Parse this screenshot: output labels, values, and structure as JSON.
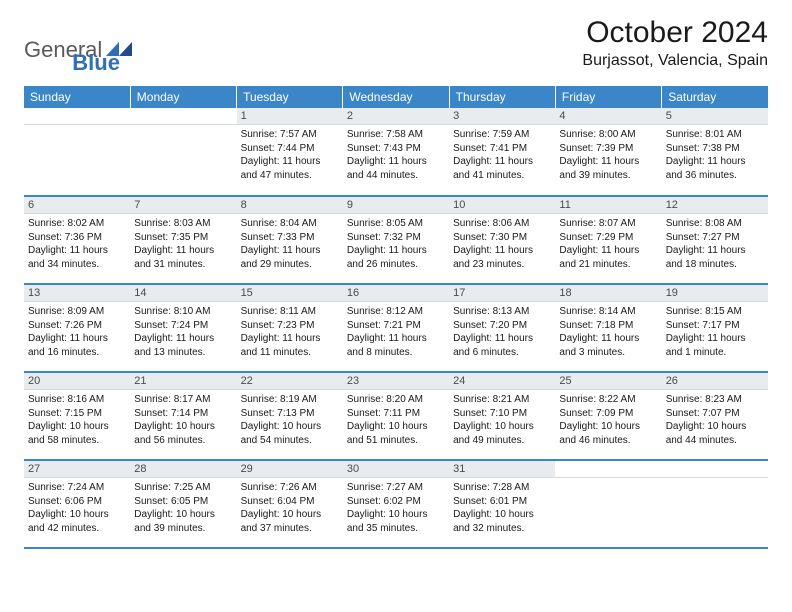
{
  "logo": {
    "text1": "General",
    "text2": "Blue"
  },
  "title": "October 2024",
  "subtitle": "Burjassot, Valencia, Spain",
  "colors": {
    "header_bg": "#3b86c8",
    "header_text": "#ffffff",
    "daynum_bg": "#e8ecef",
    "row_border": "#3b86c8",
    "logo_blue": "#2f6fb3",
    "logo_gray": "#5a5a5a"
  },
  "weekdays": [
    "Sunday",
    "Monday",
    "Tuesday",
    "Wednesday",
    "Thursday",
    "Friday",
    "Saturday"
  ],
  "weeks": [
    [
      {
        "day": "",
        "sunrise": "",
        "sunset": "",
        "daylight": ""
      },
      {
        "day": "",
        "sunrise": "",
        "sunset": "",
        "daylight": ""
      },
      {
        "day": "1",
        "sunrise": "Sunrise: 7:57 AM",
        "sunset": "Sunset: 7:44 PM",
        "daylight": "Daylight: 11 hours and 47 minutes."
      },
      {
        "day": "2",
        "sunrise": "Sunrise: 7:58 AM",
        "sunset": "Sunset: 7:43 PM",
        "daylight": "Daylight: 11 hours and 44 minutes."
      },
      {
        "day": "3",
        "sunrise": "Sunrise: 7:59 AM",
        "sunset": "Sunset: 7:41 PM",
        "daylight": "Daylight: 11 hours and 41 minutes."
      },
      {
        "day": "4",
        "sunrise": "Sunrise: 8:00 AM",
        "sunset": "Sunset: 7:39 PM",
        "daylight": "Daylight: 11 hours and 39 minutes."
      },
      {
        "day": "5",
        "sunrise": "Sunrise: 8:01 AM",
        "sunset": "Sunset: 7:38 PM",
        "daylight": "Daylight: 11 hours and 36 minutes."
      }
    ],
    [
      {
        "day": "6",
        "sunrise": "Sunrise: 8:02 AM",
        "sunset": "Sunset: 7:36 PM",
        "daylight": "Daylight: 11 hours and 34 minutes."
      },
      {
        "day": "7",
        "sunrise": "Sunrise: 8:03 AM",
        "sunset": "Sunset: 7:35 PM",
        "daylight": "Daylight: 11 hours and 31 minutes."
      },
      {
        "day": "8",
        "sunrise": "Sunrise: 8:04 AM",
        "sunset": "Sunset: 7:33 PM",
        "daylight": "Daylight: 11 hours and 29 minutes."
      },
      {
        "day": "9",
        "sunrise": "Sunrise: 8:05 AM",
        "sunset": "Sunset: 7:32 PM",
        "daylight": "Daylight: 11 hours and 26 minutes."
      },
      {
        "day": "10",
        "sunrise": "Sunrise: 8:06 AM",
        "sunset": "Sunset: 7:30 PM",
        "daylight": "Daylight: 11 hours and 23 minutes."
      },
      {
        "day": "11",
        "sunrise": "Sunrise: 8:07 AM",
        "sunset": "Sunset: 7:29 PM",
        "daylight": "Daylight: 11 hours and 21 minutes."
      },
      {
        "day": "12",
        "sunrise": "Sunrise: 8:08 AM",
        "sunset": "Sunset: 7:27 PM",
        "daylight": "Daylight: 11 hours and 18 minutes."
      }
    ],
    [
      {
        "day": "13",
        "sunrise": "Sunrise: 8:09 AM",
        "sunset": "Sunset: 7:26 PM",
        "daylight": "Daylight: 11 hours and 16 minutes."
      },
      {
        "day": "14",
        "sunrise": "Sunrise: 8:10 AM",
        "sunset": "Sunset: 7:24 PM",
        "daylight": "Daylight: 11 hours and 13 minutes."
      },
      {
        "day": "15",
        "sunrise": "Sunrise: 8:11 AM",
        "sunset": "Sunset: 7:23 PM",
        "daylight": "Daylight: 11 hours and 11 minutes."
      },
      {
        "day": "16",
        "sunrise": "Sunrise: 8:12 AM",
        "sunset": "Sunset: 7:21 PM",
        "daylight": "Daylight: 11 hours and 8 minutes."
      },
      {
        "day": "17",
        "sunrise": "Sunrise: 8:13 AM",
        "sunset": "Sunset: 7:20 PM",
        "daylight": "Daylight: 11 hours and 6 minutes."
      },
      {
        "day": "18",
        "sunrise": "Sunrise: 8:14 AM",
        "sunset": "Sunset: 7:18 PM",
        "daylight": "Daylight: 11 hours and 3 minutes."
      },
      {
        "day": "19",
        "sunrise": "Sunrise: 8:15 AM",
        "sunset": "Sunset: 7:17 PM",
        "daylight": "Daylight: 11 hours and 1 minute."
      }
    ],
    [
      {
        "day": "20",
        "sunrise": "Sunrise: 8:16 AM",
        "sunset": "Sunset: 7:15 PM",
        "daylight": "Daylight: 10 hours and 58 minutes."
      },
      {
        "day": "21",
        "sunrise": "Sunrise: 8:17 AM",
        "sunset": "Sunset: 7:14 PM",
        "daylight": "Daylight: 10 hours and 56 minutes."
      },
      {
        "day": "22",
        "sunrise": "Sunrise: 8:19 AM",
        "sunset": "Sunset: 7:13 PM",
        "daylight": "Daylight: 10 hours and 54 minutes."
      },
      {
        "day": "23",
        "sunrise": "Sunrise: 8:20 AM",
        "sunset": "Sunset: 7:11 PM",
        "daylight": "Daylight: 10 hours and 51 minutes."
      },
      {
        "day": "24",
        "sunrise": "Sunrise: 8:21 AM",
        "sunset": "Sunset: 7:10 PM",
        "daylight": "Daylight: 10 hours and 49 minutes."
      },
      {
        "day": "25",
        "sunrise": "Sunrise: 8:22 AM",
        "sunset": "Sunset: 7:09 PM",
        "daylight": "Daylight: 10 hours and 46 minutes."
      },
      {
        "day": "26",
        "sunrise": "Sunrise: 8:23 AM",
        "sunset": "Sunset: 7:07 PM",
        "daylight": "Daylight: 10 hours and 44 minutes."
      }
    ],
    [
      {
        "day": "27",
        "sunrise": "Sunrise: 7:24 AM",
        "sunset": "Sunset: 6:06 PM",
        "daylight": "Daylight: 10 hours and 42 minutes."
      },
      {
        "day": "28",
        "sunrise": "Sunrise: 7:25 AM",
        "sunset": "Sunset: 6:05 PM",
        "daylight": "Daylight: 10 hours and 39 minutes."
      },
      {
        "day": "29",
        "sunrise": "Sunrise: 7:26 AM",
        "sunset": "Sunset: 6:04 PM",
        "daylight": "Daylight: 10 hours and 37 minutes."
      },
      {
        "day": "30",
        "sunrise": "Sunrise: 7:27 AM",
        "sunset": "Sunset: 6:02 PM",
        "daylight": "Daylight: 10 hours and 35 minutes."
      },
      {
        "day": "31",
        "sunrise": "Sunrise: 7:28 AM",
        "sunset": "Sunset: 6:01 PM",
        "daylight": "Daylight: 10 hours and 32 minutes."
      },
      {
        "day": "",
        "sunrise": "",
        "sunset": "",
        "daylight": ""
      },
      {
        "day": "",
        "sunrise": "",
        "sunset": "",
        "daylight": ""
      }
    ]
  ]
}
